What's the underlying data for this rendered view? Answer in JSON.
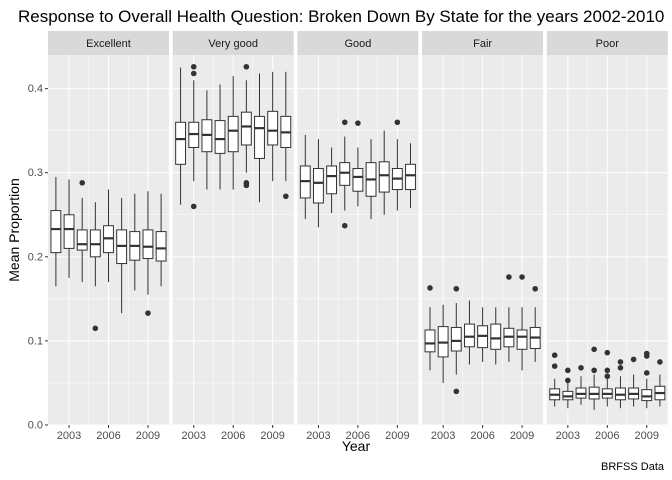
{
  "chart_data": {
    "type": "boxplot",
    "title": "Response to Overall Health Question: Broken Down By State for the years 2002-2010",
    "xlabel": "Year",
    "ylabel": "Mean Proportion",
    "caption": "BRFSS Data",
    "ylim": [
      0,
      0.44
    ],
    "xlim": [
      2001.4,
      2010.6
    ],
    "y_ticks": [
      0.0,
      0.1,
      0.2,
      0.3,
      0.4
    ],
    "y_tick_labels": [
      "0.0",
      "0.1",
      "0.2",
      "0.3",
      "0.4"
    ],
    "x_ticks": [
      2003,
      2006,
      2009
    ],
    "x_tick_labels": [
      "2003",
      "2006",
      "2009"
    ],
    "years": [
      2002,
      2003,
      2004,
      2005,
      2006,
      2007,
      2008,
      2009,
      2010
    ],
    "grid": true,
    "colors": {
      "panel_bg": "#ebebeb",
      "strip_bg": "#d9d9d9",
      "grid": "#ffffff",
      "box_fill": "#ffffff",
      "box_line": "#333333"
    },
    "facets": [
      {
        "label": "Excellent",
        "boxes": [
          {
            "year": 2002,
            "lower": 0.165,
            "q1": 0.205,
            "median": 0.233,
            "q3": 0.255,
            "upper": 0.295,
            "outliers": []
          },
          {
            "year": 2003,
            "lower": 0.175,
            "q1": 0.21,
            "median": 0.233,
            "q3": 0.25,
            "upper": 0.292,
            "outliers": []
          },
          {
            "year": 2004,
            "lower": 0.17,
            "q1": 0.208,
            "median": 0.215,
            "q3": 0.232,
            "upper": 0.27,
            "outliers": [
              0.288
            ]
          },
          {
            "year": 2005,
            "lower": 0.165,
            "q1": 0.2,
            "median": 0.215,
            "q3": 0.232,
            "upper": 0.265,
            "outliers": [
              0.115
            ]
          },
          {
            "year": 2006,
            "lower": 0.17,
            "q1": 0.205,
            "median": 0.222,
            "q3": 0.237,
            "upper": 0.28,
            "outliers": []
          },
          {
            "year": 2007,
            "lower": 0.133,
            "q1": 0.192,
            "median": 0.213,
            "q3": 0.232,
            "upper": 0.27,
            "outliers": []
          },
          {
            "year": 2008,
            "lower": 0.16,
            "q1": 0.196,
            "median": 0.213,
            "q3": 0.23,
            "upper": 0.275,
            "outliers": []
          },
          {
            "year": 2009,
            "lower": 0.155,
            "q1": 0.198,
            "median": 0.212,
            "q3": 0.232,
            "upper": 0.278,
            "outliers": [
              0.133
            ]
          },
          {
            "year": 2010,
            "lower": 0.165,
            "q1": 0.195,
            "median": 0.21,
            "q3": 0.23,
            "upper": 0.275,
            "outliers": []
          }
        ]
      },
      {
        "label": "Very good",
        "boxes": [
          {
            "year": 2002,
            "lower": 0.262,
            "q1": 0.31,
            "median": 0.34,
            "q3": 0.36,
            "upper": 0.425,
            "outliers": []
          },
          {
            "year": 2003,
            "lower": 0.29,
            "q1": 0.33,
            "median": 0.346,
            "q3": 0.36,
            "upper": 0.41,
            "outliers": [
              0.426,
              0.418,
              0.26
            ]
          },
          {
            "year": 2004,
            "lower": 0.28,
            "q1": 0.325,
            "median": 0.345,
            "q3": 0.363,
            "upper": 0.398,
            "outliers": []
          },
          {
            "year": 2005,
            "lower": 0.28,
            "q1": 0.323,
            "median": 0.34,
            "q3": 0.362,
            "upper": 0.405,
            "outliers": []
          },
          {
            "year": 2006,
            "lower": 0.28,
            "q1": 0.325,
            "median": 0.35,
            "q3": 0.367,
            "upper": 0.415,
            "outliers": []
          },
          {
            "year": 2007,
            "lower": 0.3,
            "q1": 0.333,
            "median": 0.355,
            "q3": 0.372,
            "upper": 0.41,
            "outliers": [
              0.426,
              0.288,
              0.285
            ]
          },
          {
            "year": 2008,
            "lower": 0.265,
            "q1": 0.317,
            "median": 0.353,
            "q3": 0.367,
            "upper": 0.418,
            "outliers": []
          },
          {
            "year": 2009,
            "lower": 0.29,
            "q1": 0.333,
            "median": 0.35,
            "q3": 0.373,
            "upper": 0.42,
            "outliers": []
          },
          {
            "year": 2010,
            "lower": 0.29,
            "q1": 0.33,
            "median": 0.348,
            "q3": 0.367,
            "upper": 0.42,
            "outliers": [
              0.272
            ]
          }
        ]
      },
      {
        "label": "Good",
        "boxes": [
          {
            "year": 2002,
            "lower": 0.245,
            "q1": 0.27,
            "median": 0.29,
            "q3": 0.308,
            "upper": 0.345,
            "outliers": []
          },
          {
            "year": 2003,
            "lower": 0.235,
            "q1": 0.264,
            "median": 0.288,
            "q3": 0.305,
            "upper": 0.34,
            "outliers": []
          },
          {
            "year": 2004,
            "lower": 0.252,
            "q1": 0.275,
            "median": 0.296,
            "q3": 0.308,
            "upper": 0.33,
            "outliers": []
          },
          {
            "year": 2005,
            "lower": 0.255,
            "q1": 0.285,
            "median": 0.3,
            "q3": 0.312,
            "upper": 0.343,
            "outliers": [
              0.36,
              0.237
            ]
          },
          {
            "year": 2006,
            "lower": 0.26,
            "q1": 0.278,
            "median": 0.295,
            "q3": 0.305,
            "upper": 0.33,
            "outliers": [
              0.359
            ]
          },
          {
            "year": 2007,
            "lower": 0.245,
            "q1": 0.272,
            "median": 0.292,
            "q3": 0.312,
            "upper": 0.34,
            "outliers": []
          },
          {
            "year": 2008,
            "lower": 0.25,
            "q1": 0.277,
            "median": 0.297,
            "q3": 0.313,
            "upper": 0.35,
            "outliers": []
          },
          {
            "year": 2009,
            "lower": 0.255,
            "q1": 0.28,
            "median": 0.293,
            "q3": 0.305,
            "upper": 0.34,
            "outliers": [
              0.36
            ]
          },
          {
            "year": 2010,
            "lower": 0.258,
            "q1": 0.28,
            "median": 0.297,
            "q3": 0.31,
            "upper": 0.335,
            "outliers": []
          }
        ]
      },
      {
        "label": "Fair",
        "boxes": [
          {
            "year": 2002,
            "lower": 0.065,
            "q1": 0.087,
            "median": 0.097,
            "q3": 0.113,
            "upper": 0.14,
            "outliers": [
              0.163
            ]
          },
          {
            "year": 2003,
            "lower": 0.05,
            "q1": 0.081,
            "median": 0.098,
            "q3": 0.117,
            "upper": 0.143,
            "outliers": []
          },
          {
            "year": 2004,
            "lower": 0.06,
            "q1": 0.088,
            "median": 0.1,
            "q3": 0.116,
            "upper": 0.145,
            "outliers": [
              0.162,
              0.04
            ]
          },
          {
            "year": 2005,
            "lower": 0.072,
            "q1": 0.093,
            "median": 0.105,
            "q3": 0.12,
            "upper": 0.148,
            "outliers": []
          },
          {
            "year": 2006,
            "lower": 0.075,
            "q1": 0.092,
            "median": 0.106,
            "q3": 0.118,
            "upper": 0.14,
            "outliers": []
          },
          {
            "year": 2007,
            "lower": 0.072,
            "q1": 0.09,
            "median": 0.103,
            "q3": 0.12,
            "upper": 0.14,
            "outliers": []
          },
          {
            "year": 2008,
            "lower": 0.075,
            "q1": 0.093,
            "median": 0.105,
            "q3": 0.115,
            "upper": 0.14,
            "outliers": [
              0.176
            ]
          },
          {
            "year": 2009,
            "lower": 0.065,
            "q1": 0.09,
            "median": 0.105,
            "q3": 0.113,
            "upper": 0.14,
            "outliers": [
              0.176
            ]
          },
          {
            "year": 2010,
            "lower": 0.075,
            "q1": 0.091,
            "median": 0.104,
            "q3": 0.116,
            "upper": 0.14,
            "outliers": [
              0.162
            ]
          }
        ]
      },
      {
        "label": "Poor",
        "boxes": [
          {
            "year": 2002,
            "lower": 0.022,
            "q1": 0.03,
            "median": 0.036,
            "q3": 0.043,
            "upper": 0.055,
            "outliers": [
              0.083,
              0.07
            ]
          },
          {
            "year": 2003,
            "lower": 0.02,
            "q1": 0.03,
            "median": 0.034,
            "q3": 0.04,
            "upper": 0.05,
            "outliers": [
              0.065,
              0.053
            ]
          },
          {
            "year": 2004,
            "lower": 0.024,
            "q1": 0.032,
            "median": 0.037,
            "q3": 0.044,
            "upper": 0.058,
            "outliers": [
              0.068
            ]
          },
          {
            "year": 2005,
            "lower": 0.018,
            "q1": 0.031,
            "median": 0.037,
            "q3": 0.045,
            "upper": 0.06,
            "outliers": [
              0.09,
              0.065
            ]
          },
          {
            "year": 2006,
            "lower": 0.022,
            "q1": 0.032,
            "median": 0.037,
            "q3": 0.043,
            "upper": 0.055,
            "outliers": [
              0.086,
              0.065,
              0.058
            ]
          },
          {
            "year": 2007,
            "lower": 0.02,
            "q1": 0.03,
            "median": 0.036,
            "q3": 0.044,
            "upper": 0.058,
            "outliers": [
              0.075,
              0.068
            ]
          },
          {
            "year": 2008,
            "lower": 0.022,
            "q1": 0.031,
            "median": 0.037,
            "q3": 0.044,
            "upper": 0.06,
            "outliers": [
              0.078
            ]
          },
          {
            "year": 2009,
            "lower": 0.02,
            "q1": 0.029,
            "median": 0.034,
            "q3": 0.042,
            "upper": 0.055,
            "outliers": [
              0.085,
              0.082,
              0.062
            ]
          },
          {
            "year": 2010,
            "lower": 0.022,
            "q1": 0.03,
            "median": 0.038,
            "q3": 0.046,
            "upper": 0.06,
            "outliers": [
              0.075
            ]
          }
        ]
      }
    ]
  }
}
